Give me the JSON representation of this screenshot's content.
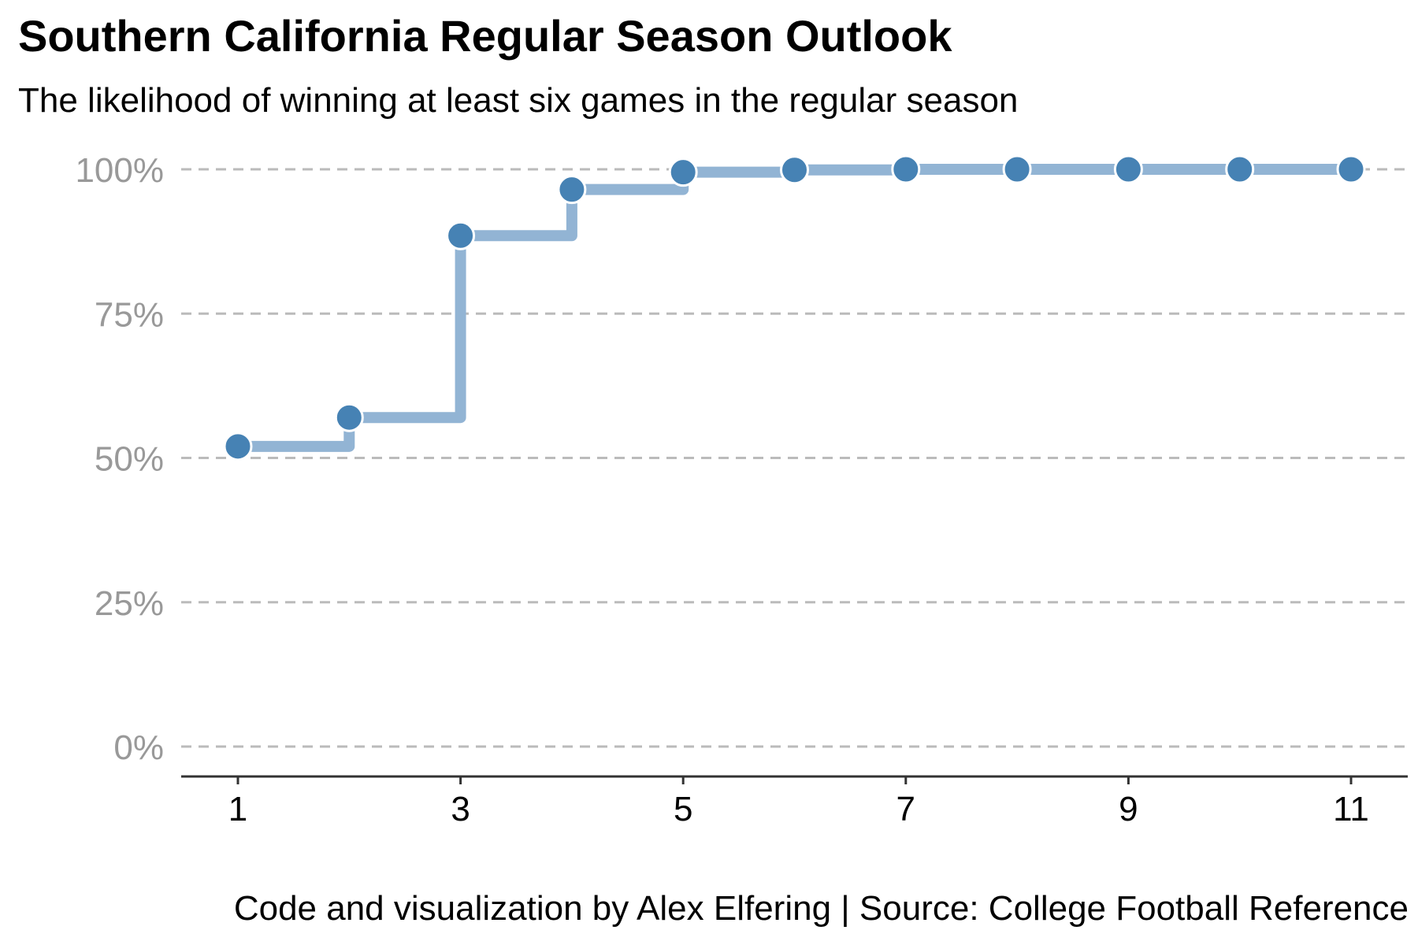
{
  "chart_data": {
    "type": "line",
    "step": true,
    "title": "Southern California Regular Season Outlook",
    "subtitle": "The likelihood of winning at least six games in the regular season",
    "caption": "Code and visualization by Alex Elfering | Source: College Football Reference",
    "xlabel": "",
    "ylabel": "",
    "x": [
      1,
      2,
      3,
      4,
      5,
      6,
      7,
      8,
      9,
      10,
      11
    ],
    "values": [
      0.52,
      0.57,
      0.885,
      0.965,
      0.995,
      0.999,
      1.0,
      1.0,
      1.0,
      1.0,
      1.0
    ],
    "xlim": [
      1,
      11
    ],
    "ylim": [
      0,
      1
    ],
    "x_ticks": [
      1,
      3,
      5,
      7,
      9,
      11
    ],
    "x_tick_labels": [
      "1",
      "3",
      "5",
      "7",
      "9",
      "11"
    ],
    "y_ticks": [
      0,
      0.25,
      0.5,
      0.75,
      1.0
    ],
    "y_tick_labels": [
      "0%",
      "25%",
      "50%",
      "75%",
      "100%"
    ],
    "grid": "horizontal dashed",
    "legend": "none",
    "colors": {
      "step_line": "#92b4d4",
      "point": "#4682b4",
      "point_outline": "#ffffff",
      "grid": "#bbbbbb",
      "y_tick_text": "#999999",
      "x_tick_text": "#000000",
      "axis_line": "#333333"
    }
  }
}
